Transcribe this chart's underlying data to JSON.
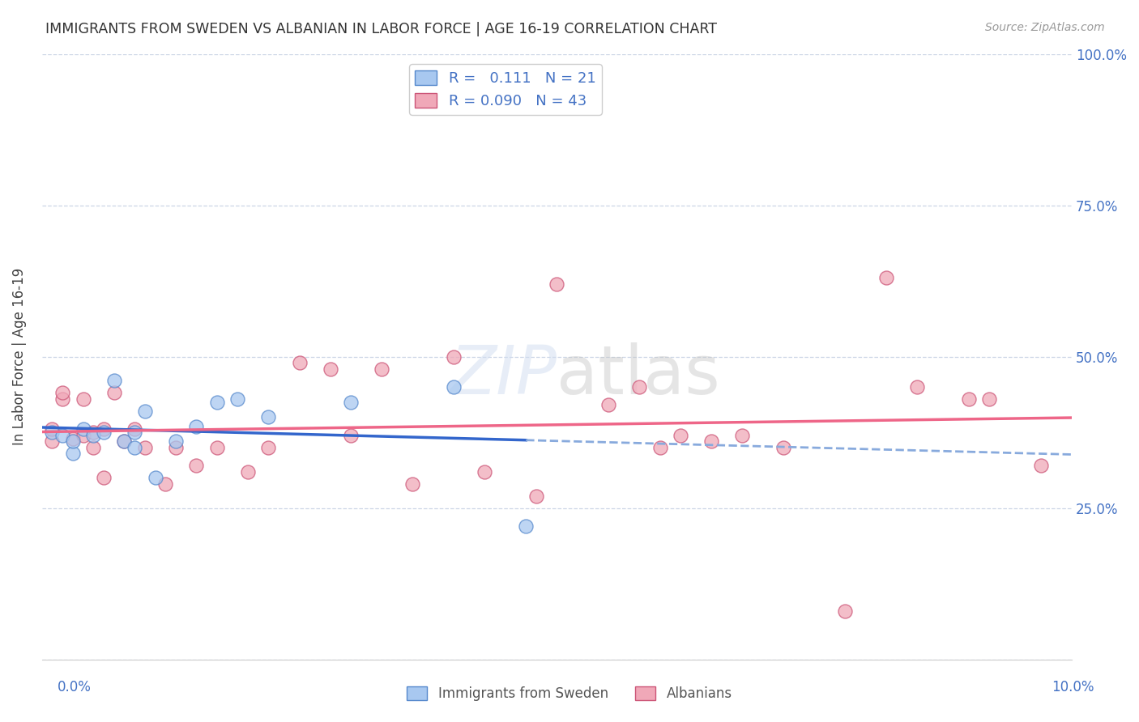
{
  "title": "IMMIGRANTS FROM SWEDEN VS ALBANIAN IN LABOR FORCE | AGE 16-19 CORRELATION CHART",
  "source": "Source: ZipAtlas.com",
  "ylabel": "In Labor Force | Age 16-19",
  "xlim": [
    0.0,
    0.1
  ],
  "ylim": [
    0.0,
    1.0
  ],
  "yticks": [
    0.0,
    0.25,
    0.5,
    0.75,
    1.0
  ],
  "ytick_labels": [
    "",
    "25.0%",
    "50.0%",
    "75.0%",
    "100.0%"
  ],
  "xticks": [
    0.0,
    0.02,
    0.04,
    0.05,
    0.06,
    0.08,
    0.1
  ],
  "legend_R1": "0.111",
  "legend_N1": "21",
  "legend_R2": "0.090",
  "legend_N2": "43",
  "blue_fill": "#a8c8f0",
  "blue_edge": "#5588cc",
  "pink_fill": "#f0a8b8",
  "pink_edge": "#cc5577",
  "line_blue_solid": "#3366cc",
  "line_blue_dash": "#88aadd",
  "line_pink": "#ee6688",
  "sweden_points_x": [
    0.001,
    0.002,
    0.003,
    0.003,
    0.004,
    0.005,
    0.006,
    0.007,
    0.008,
    0.009,
    0.009,
    0.01,
    0.011,
    0.013,
    0.015,
    0.017,
    0.019,
    0.022,
    0.03,
    0.04,
    0.047
  ],
  "sweden_points_y": [
    0.375,
    0.37,
    0.34,
    0.36,
    0.38,
    0.37,
    0.375,
    0.46,
    0.36,
    0.35,
    0.375,
    0.41,
    0.3,
    0.36,
    0.385,
    0.425,
    0.43,
    0.4,
    0.425,
    0.45,
    0.22
  ],
  "albanian_points_x": [
    0.001,
    0.001,
    0.002,
    0.002,
    0.003,
    0.004,
    0.004,
    0.005,
    0.005,
    0.006,
    0.006,
    0.007,
    0.008,
    0.009,
    0.01,
    0.012,
    0.013,
    0.015,
    0.017,
    0.02,
    0.022,
    0.025,
    0.028,
    0.03,
    0.033,
    0.036,
    0.04,
    0.043,
    0.048,
    0.05,
    0.055,
    0.058,
    0.06,
    0.062,
    0.065,
    0.068,
    0.072,
    0.078,
    0.082,
    0.085,
    0.09,
    0.092,
    0.097
  ],
  "albanian_points_y": [
    0.36,
    0.38,
    0.43,
    0.44,
    0.365,
    0.43,
    0.37,
    0.35,
    0.375,
    0.38,
    0.3,
    0.44,
    0.36,
    0.38,
    0.35,
    0.29,
    0.35,
    0.32,
    0.35,
    0.31,
    0.35,
    0.49,
    0.48,
    0.37,
    0.48,
    0.29,
    0.5,
    0.31,
    0.27,
    0.62,
    0.42,
    0.45,
    0.35,
    0.37,
    0.36,
    0.37,
    0.35,
    0.08,
    0.63,
    0.45,
    0.43,
    0.43,
    0.32
  ]
}
